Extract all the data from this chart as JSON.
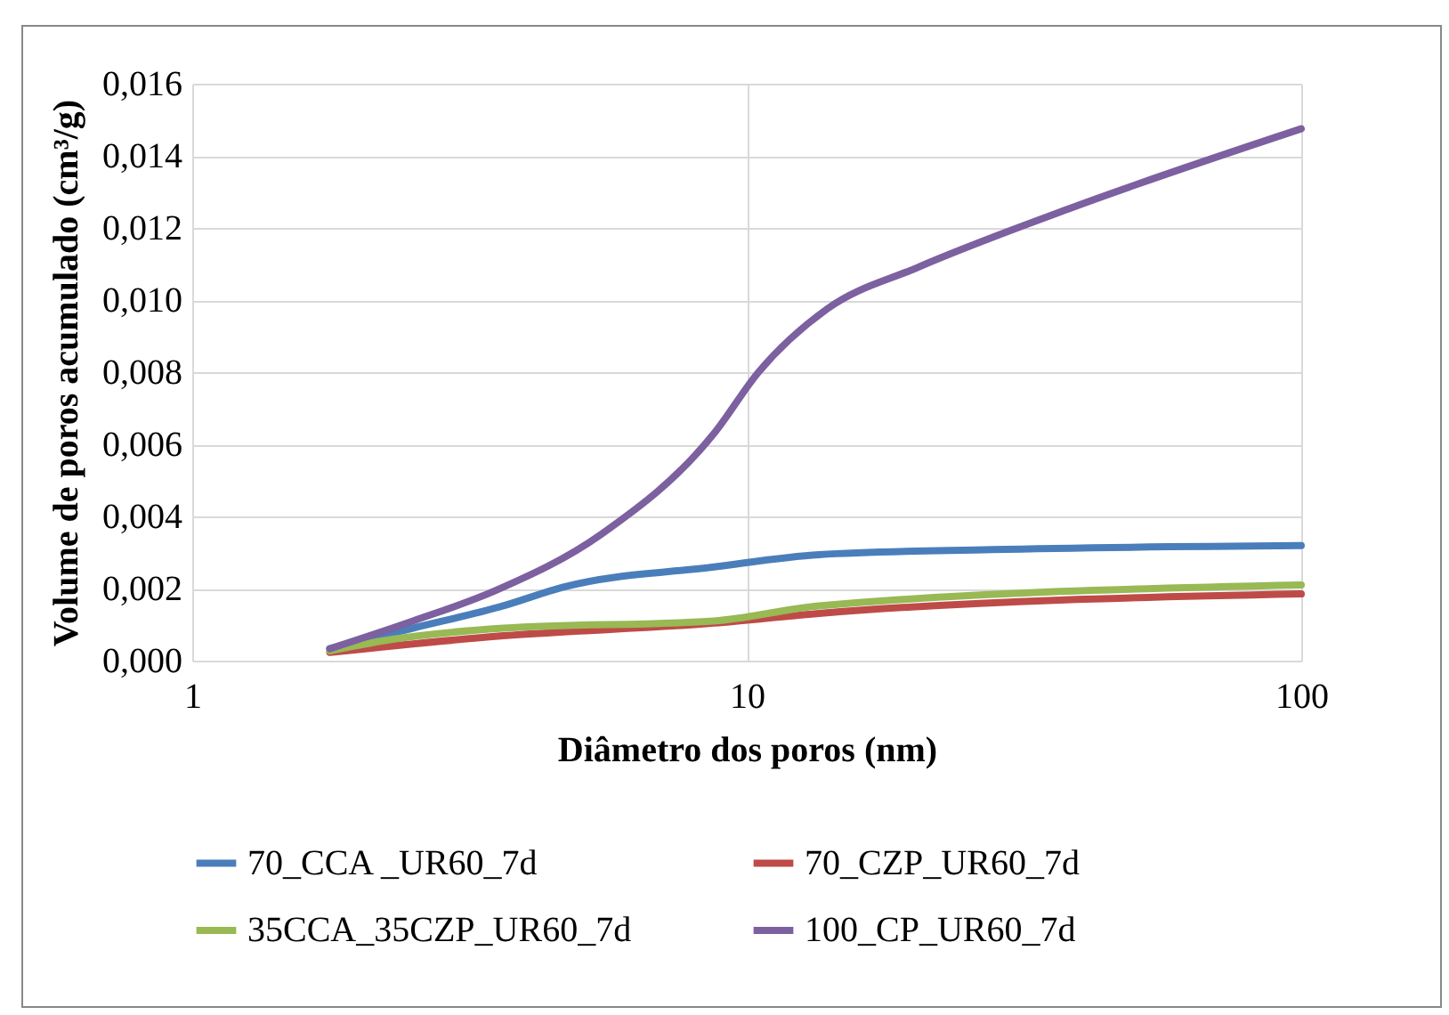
{
  "chart_data": {
    "type": "line",
    "xlabel": "Diâmetro dos poros (nm)",
    "ylabel": "Volume de poros acumulado (cm³/g)",
    "log": "x",
    "xlim": [
      1,
      100
    ],
    "xticks": [
      1,
      10,
      100
    ],
    "ylim": [
      0,
      0.016
    ],
    "yticks": [
      {
        "value": 0,
        "label": "0,000"
      },
      {
        "value": 0.002,
        "label": "0,002"
      },
      {
        "value": 0.004,
        "label": "0,004"
      },
      {
        "value": 0.006,
        "label": "0,006"
      },
      {
        "value": 0.008,
        "label": "0,008"
      },
      {
        "value": 0.01,
        "label": "0,010"
      },
      {
        "value": 0.012,
        "label": "0,012"
      },
      {
        "value": 0.014,
        "label": "0,014"
      },
      {
        "value": 0.016,
        "label": "0,016"
      }
    ],
    "grid": true,
    "legend": "bottom",
    "series": [
      {
        "name": "70_CCA _UR60_7d",
        "color": "#4a7ebb",
        "x": [
          1.77,
          2.5,
          3.64,
          4.67,
          8.73,
          13.5,
          27.7,
          100
        ],
        "values": [
          0.00033,
          0.0009,
          0.00152,
          0.00204,
          0.0026,
          0.00294,
          0.00308,
          0.00319
        ]
      },
      {
        "name": "70_CZP_UR60_7d",
        "color": "#be4b48",
        "x": [
          1.77,
          3.64,
          8.73,
          13.5,
          100
        ],
        "values": [
          0.00023,
          0.00069,
          0.00104,
          0.00131,
          0.00185
        ]
      },
      {
        "name": "35CCA_35CZP_UR60_7d",
        "color": "#98b954",
        "x": [
          1.77,
          2.27,
          3.64,
          8.73,
          13.5,
          100
        ],
        "values": [
          0.00027,
          0.00058,
          0.0009,
          0.0011,
          0.00152,
          0.0021
        ]
      },
      {
        "name": "100_CP_UR60_7d",
        "color": "#7d60a0",
        "x": [
          1.77,
          2.5,
          3.52,
          5.46,
          8.73,
          10.5,
          13.95,
          20.3,
          37.9,
          100
        ],
        "values": [
          0.00033,
          0.0011,
          0.00194,
          0.0035,
          0.0063,
          0.008,
          0.00975,
          0.0109,
          0.01252,
          0.01475
        ]
      }
    ]
  }
}
